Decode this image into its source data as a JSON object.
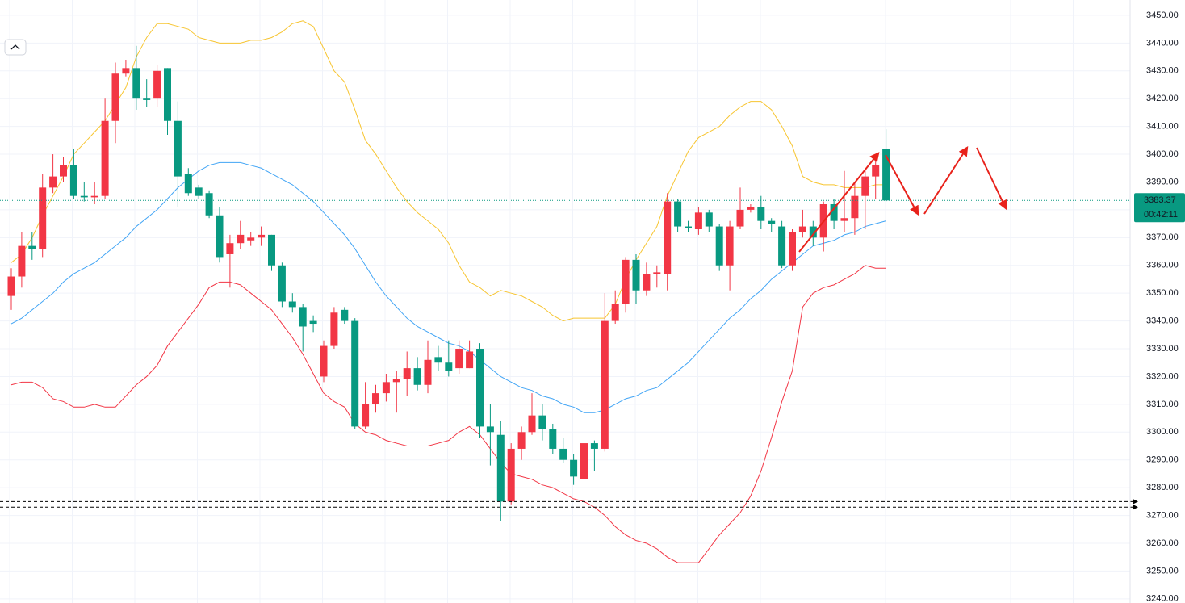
{
  "chart_data": {
    "type": "candlestick",
    "open": [
      3349,
      3356,
      3367,
      3366,
      3388,
      3392,
      3396,
      3385,
      3384.5,
      3385,
      3412,
      3429,
      3431,
      3420,
      3420,
      3431,
      3412,
      3393,
      3388,
      3386,
      3378,
      3364,
      3368,
      3369,
      3370,
      3371,
      3360,
      3347,
      3345,
      3340,
      3320,
      3331,
      3344,
      3340,
      3302,
      3310,
      3314,
      3318,
      3319,
      3323,
      3317,
      3327,
      3325,
      3323,
      3323,
      3330,
      3302,
      3299,
      3275,
      3294,
      3300,
      3306,
      3301,
      3294,
      3290,
      3283,
      3296,
      3294,
      3340,
      3346,
      3362,
      3351,
      3357,
      3357,
      3383,
      3374,
      3373,
      3379,
      3374,
      3360,
      3374,
      3380,
      3381,
      3376,
      3374,
      3360,
      3372,
      3374,
      3370,
      3382,
      3376,
      3377,
      3385,
      3392,
      3402
    ],
    "high": [
      3359,
      3372,
      3372,
      3393,
      3400,
      3399,
      3402,
      3390,
      3390,
      3420,
      3433,
      3434,
      3439,
      3427,
      3432,
      3431,
      3419,
      3395,
      3389,
      3387,
      3381,
      3371,
      3376,
      3372,
      3374,
      3371,
      3361,
      3350,
      3346,
      3342,
      3333,
      3345,
      3345,
      3341,
      3318,
      3317,
      3321,
      3322,
      3329,
      3327,
      3333,
      3331,
      3333,
      3333,
      3333,
      3332,
      3310,
      3304,
      3296,
      3302,
      3314,
      3310,
      3303,
      3298,
      3292,
      3298,
      3297,
      3350,
      3351,
      3363,
      3364,
      3361,
      3360,
      3386,
      3384,
      3376,
      3381,
      3380,
      3375,
      3376,
      3388,
      3382,
      3385,
      3377,
      3376,
      3373,
      3380,
      3376,
      3383,
      3384,
      3394,
      3390,
      3395,
      3400,
      3409
    ],
    "low": [
      3344,
      3352,
      3362,
      3363,
      3386,
      3390,
      3384,
      3383,
      3382,
      3384,
      3404,
      3428,
      3416,
      3417,
      3417,
      3407,
      3381,
      3385,
      3384,
      3377,
      3361,
      3352,
      3366,
      3367,
      3367,
      3358,
      3345,
      3343,
      3329,
      3336,
      3318,
      3330,
      3339,
      3301,
      3301,
      3307,
      3311,
      3307,
      3313,
      3315,
      3314,
      3322,
      3320,
      3321,
      3323,
      3298,
      3288,
      3268,
      3274,
      3290,
      3299,
      3297,
      3292,
      3289,
      3281,
      3282,
      3286,
      3293,
      3339,
      3343,
      3346,
      3349,
      3352,
      3351,
      3372,
      3372,
      3371,
      3372,
      3358,
      3351,
      3373,
      3379,
      3373,
      3372,
      3359,
      3358,
      3370,
      3367,
      3365,
      3373,
      3372,
      3371,
      3373,
      3384,
      3383
    ],
    "close": [
      3356,
      3367,
      3366,
      3388,
      3392,
      3396,
      3385,
      3384.5,
      3385,
      3412,
      3429,
      3431,
      3420,
      3419.5,
      3430,
      3412,
      3392,
      3386,
      3385,
      3378,
      3363,
      3368,
      3371,
      3370,
      3371,
      3360,
      3347,
      3345,
      3338,
      3339,
      3331,
      3343,
      3340,
      3302,
      3310,
      3314,
      3318,
      3319,
      3323,
      3317,
      3326,
      3325,
      3322,
      3330,
      3329,
      3302,
      3300,
      3275,
      3294,
      3300,
      3306,
      3301,
      3294,
      3290,
      3284,
      3296,
      3294,
      3340,
      3346,
      3362,
      3351,
      3357,
      3357.5,
      3383,
      3374,
      3373.5,
      3379,
      3374,
      3360,
      3374,
      3380,
      3381,
      3376,
      3375,
      3360,
      3372,
      3374,
      3370,
      3382,
      3376,
      3377,
      3385,
      3392,
      3396,
      3383.37
    ],
    "up_color": "#f23645",
    "down_color": "#089981",
    "bands": {
      "upper": {
        "color": "#f7c531",
        "values": [
          3361,
          3364,
          3370,
          3378,
          3385,
          3392,
          3400,
          3404,
          3408,
          3412,
          3418,
          3424,
          3435,
          3442,
          3447,
          3447,
          3446,
          3445,
          3442,
          3441,
          3440,
          3440,
          3440,
          3441,
          3441,
          3442,
          3444,
          3447,
          3448,
          3446,
          3438,
          3430,
          3426,
          3416,
          3405,
          3400,
          3394,
          3388,
          3383,
          3379,
          3376,
          3373,
          3368,
          3360,
          3354,
          3352,
          3349,
          3351,
          3350,
          3349,
          3347,
          3345,
          3342,
          3340,
          3341,
          3341,
          3341,
          3341,
          3346,
          3355,
          3362,
          3368,
          3374,
          3385,
          3393,
          3401,
          3406,
          3408,
          3410,
          3414,
          3417,
          3419,
          3419,
          3416,
          3410,
          3403,
          3392,
          3390,
          3389,
          3389,
          3388,
          3388,
          3388,
          3389,
          3389
        ]
      },
      "middle": {
        "color": "#42a5f5",
        "values": [
          3339,
          3341,
          3344,
          3347,
          3350,
          3354,
          3357,
          3359,
          3361,
          3364,
          3367,
          3370,
          3374,
          3377,
          3380,
          3384,
          3388,
          3391,
          3394,
          3396,
          3397,
          3397,
          3397,
          3396,
          3395,
          3393,
          3391,
          3389,
          3386,
          3383,
          3379,
          3375,
          3371,
          3366,
          3360,
          3354,
          3349,
          3345,
          3341,
          3338,
          3336,
          3334,
          3332,
          3331,
          3329,
          3326,
          3323,
          3320,
          3318,
          3316,
          3315,
          3313,
          3312,
          3310,
          3309,
          3307,
          3307,
          3308,
          3310,
          3312,
          3313,
          3315,
          3316,
          3319,
          3322,
          3325,
          3329,
          3333,
          3337,
          3341,
          3344,
          3348,
          3351,
          3355,
          3358,
          3361,
          3364,
          3367,
          3368,
          3369,
          3371,
          3372,
          3374,
          3375,
          3376
        ]
      },
      "lower": {
        "color": "#f23645",
        "values": [
          3317,
          3318,
          3318,
          3316,
          3312,
          3311,
          3309,
          3309,
          3310,
          3309,
          3309,
          3313,
          3317,
          3320,
          3324,
          3331,
          3336,
          3341,
          3346,
          3352,
          3354,
          3354,
          3353,
          3350,
          3347,
          3344,
          3339,
          3334,
          3328,
          3321,
          3314,
          3311,
          3309,
          3303,
          3300,
          3299,
          3297,
          3296,
          3295,
          3295,
          3295,
          3296,
          3297,
          3300,
          3302,
          3299,
          3294,
          3289,
          3285,
          3284,
          3283,
          3281,
          3280,
          3278,
          3276,
          3275,
          3273,
          3270,
          3266,
          3263,
          3261,
          3260,
          3258,
          3255,
          3253,
          3253,
          3253,
          3258,
          3263,
          3267,
          3271,
          3277,
          3286,
          3298,
          3311,
          3322,
          3345,
          3350,
          3352,
          3353,
          3355,
          3357,
          3360,
          3359,
          3359
        ]
      }
    },
    "levels": [
      3275,
      3273
    ],
    "last_price": 3383.37,
    "countdown": "00:42:11",
    "ylim": [
      3238.5,
      3455.5
    ],
    "yticks": [
      {
        "value": 3240,
        "label": "3240.00"
      },
      {
        "value": 3250,
        "label": "3250.00"
      },
      {
        "value": 3260,
        "label": "3260.00"
      },
      {
        "value": 3270,
        "label": "3270.00"
      },
      {
        "value": 3280,
        "label": "3280.00"
      },
      {
        "value": 3290,
        "label": "3290.00"
      },
      {
        "value": 3300,
        "label": "3300.00"
      },
      {
        "value": 3310,
        "label": "3310.00"
      },
      {
        "value": 3320,
        "label": "3320.00"
      },
      {
        "value": 3330,
        "label": "3330.00"
      },
      {
        "value": 3340,
        "label": "3340.00"
      },
      {
        "value": 3350,
        "label": "3350.00"
      },
      {
        "value": 3360,
        "label": "3360.00"
      },
      {
        "value": 3370,
        "label": "3370.00"
      },
      {
        "value": 3380,
        "label": "3380.00"
      },
      {
        "value": 3390,
        "label": "3390.00"
      },
      {
        "value": 3400,
        "label": "3400.00"
      },
      {
        "value": 3410,
        "label": "3410.00"
      },
      {
        "value": 3420,
        "label": "3420.00"
      },
      {
        "value": 3430,
        "label": "3430.00"
      },
      {
        "value": 3440,
        "label": "3440.00"
      },
      {
        "value": 3450,
        "label": "3450.00"
      }
    ],
    "grid": true
  }
}
